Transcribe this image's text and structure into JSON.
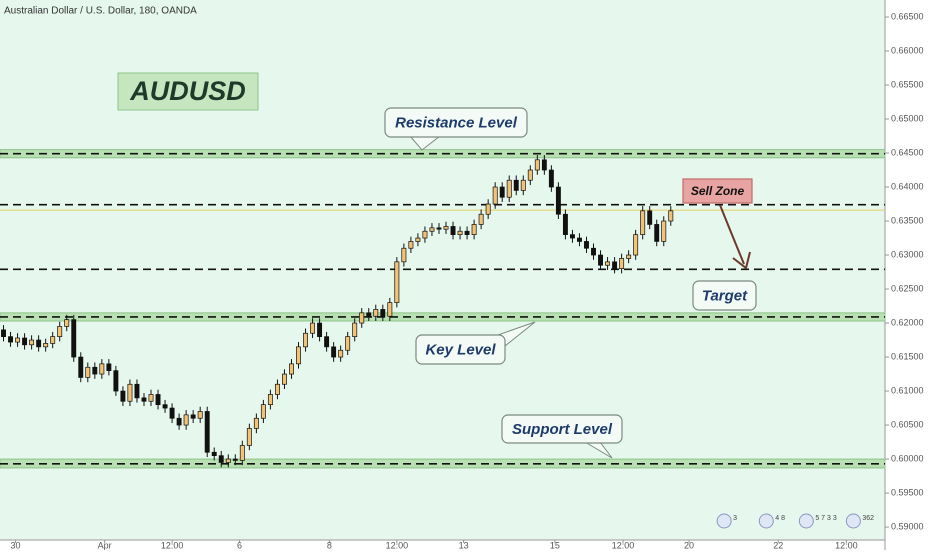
{
  "chart_data": {
    "type": "candlestick",
    "title": "Australian Dollar / U.S. Dollar, 180, OANDA",
    "symbol": "AUDUSD",
    "up_color": "#f2c277",
    "down_color": "#111111",
    "open": [
      0.619,
      0.618,
      0.6172,
      0.6178,
      0.6168,
      0.6175,
      0.6165,
      0.617,
      0.618,
      0.6195,
      0.6205,
      0.615,
      0.612,
      0.6135,
      0.6125,
      0.614,
      0.613,
      0.61,
      0.6085,
      0.611,
      0.609,
      0.6085,
      0.6095,
      0.608,
      0.6075,
      0.606,
      0.605,
      0.6065,
      0.606,
      0.607,
      0.601,
      0.6005,
      0.5995,
      0.6,
      0.5998,
      0.602,
      0.6045,
      0.606,
      0.608,
      0.6095,
      0.611,
      0.6125,
      0.614,
      0.6165,
      0.6185,
      0.62,
      0.618,
      0.6165,
      0.615,
      0.616,
      0.618,
      0.62,
      0.6215,
      0.621,
      0.622,
      0.621,
      0.623,
      0.629,
      0.631,
      0.632,
      0.6325,
      0.6335,
      0.634,
      0.6338,
      0.6342,
      0.633,
      0.6335,
      0.633,
      0.6345,
      0.636,
      0.6375,
      0.64,
      0.6385,
      0.641,
      0.6395,
      0.641,
      0.6425,
      0.644,
      0.6425,
      0.64,
      0.636,
      0.633,
      0.6325,
      0.632,
      0.631,
      0.63,
      0.6285,
      0.629,
      0.628,
      0.6295,
      0.63,
      0.633,
      0.6365,
      0.6345,
      0.632,
      0.635
    ],
    "high": [
      0.6197,
      0.6187,
      0.6185,
      0.6185,
      0.6182,
      0.6182,
      0.6177,
      0.6187,
      0.6202,
      0.6212,
      0.6212,
      0.6157,
      0.6142,
      0.6142,
      0.6147,
      0.6147,
      0.6137,
      0.6107,
      0.6117,
      0.6117,
      0.6097,
      0.6102,
      0.6102,
      0.6087,
      0.6082,
      0.6067,
      0.6072,
      0.6072,
      0.6077,
      0.6077,
      0.6017,
      0.6012,
      0.6007,
      0.6007,
      0.6027,
      0.6052,
      0.6067,
      0.6087,
      0.6102,
      0.6117,
      0.6132,
      0.6147,
      0.6172,
      0.6192,
      0.6207,
      0.6207,
      0.6187,
      0.6172,
      0.6167,
      0.6187,
      0.6207,
      0.6222,
      0.6222,
      0.6227,
      0.6227,
      0.6237,
      0.6297,
      0.6317,
      0.6327,
      0.6332,
      0.6342,
      0.6347,
      0.6347,
      0.6349,
      0.6349,
      0.6342,
      0.6342,
      0.6352,
      0.6367,
      0.6382,
      0.6407,
      0.6407,
      0.6417,
      0.6417,
      0.6417,
      0.6432,
      0.6447,
      0.6447,
      0.6432,
      0.6407,
      0.6367,
      0.6337,
      0.6332,
      0.6327,
      0.6317,
      0.6307,
      0.6297,
      0.6297,
      0.6302,
      0.6307,
      0.6337,
      0.6372,
      0.6372,
      0.6352,
      0.6357,
      0.6372
    ],
    "low": [
      0.6173,
      0.6165,
      0.6165,
      0.6161,
      0.6161,
      0.6158,
      0.6158,
      0.6163,
      0.6173,
      0.6188,
      0.6143,
      0.6113,
      0.6113,
      0.6118,
      0.6118,
      0.6123,
      0.6093,
      0.6078,
      0.6078,
      0.6083,
      0.6078,
      0.6078,
      0.6073,
      0.6068,
      0.6053,
      0.6043,
      0.6043,
      0.6053,
      0.6053,
      0.6003,
      0.5998,
      0.5988,
      0.5988,
      0.5991,
      0.5991,
      0.6013,
      0.6038,
      0.6053,
      0.6073,
      0.6088,
      0.6103,
      0.6118,
      0.6133,
      0.6158,
      0.6178,
      0.6173,
      0.6158,
      0.6143,
      0.6143,
      0.6153,
      0.6173,
      0.6193,
      0.6203,
      0.6203,
      0.6203,
      0.6203,
      0.6223,
      0.6283,
      0.6303,
      0.6313,
      0.6318,
      0.6328,
      0.6331,
      0.6331,
      0.6323,
      0.6323,
      0.6323,
      0.6323,
      0.6338,
      0.6353,
      0.6368,
      0.6378,
      0.6378,
      0.6388,
      0.6388,
      0.6403,
      0.6418,
      0.6418,
      0.6393,
      0.6353,
      0.6323,
      0.6318,
      0.6313,
      0.6303,
      0.6293,
      0.6278,
      0.6278,
      0.6273,
      0.6273,
      0.6288,
      0.6293,
      0.6323,
      0.6338,
      0.6313,
      0.6313,
      0.6343
    ],
    "close": [
      0.618,
      0.6172,
      0.6178,
      0.6168,
      0.6175,
      0.6165,
      0.617,
      0.618,
      0.6195,
      0.6205,
      0.615,
      0.612,
      0.6135,
      0.6125,
      0.614,
      0.613,
      0.61,
      0.6085,
      0.611,
      0.609,
      0.6085,
      0.6095,
      0.608,
      0.6075,
      0.606,
      0.605,
      0.6065,
      0.606,
      0.607,
      0.601,
      0.6005,
      0.5995,
      0.6,
      0.5998,
      0.602,
      0.6045,
      0.606,
      0.608,
      0.6095,
      0.611,
      0.6125,
      0.614,
      0.6165,
      0.6185,
      0.62,
      0.618,
      0.6165,
      0.615,
      0.616,
      0.618,
      0.62,
      0.6215,
      0.621,
      0.622,
      0.621,
      0.623,
      0.629,
      0.631,
      0.632,
      0.6325,
      0.6335,
      0.634,
      0.6338,
      0.6342,
      0.633,
      0.6335,
      0.633,
      0.6345,
      0.636,
      0.6375,
      0.64,
      0.6385,
      0.641,
      0.6395,
      0.641,
      0.6425,
      0.644,
      0.6425,
      0.64,
      0.636,
      0.633,
      0.6325,
      0.632,
      0.631,
      0.63,
      0.6285,
      0.629,
      0.628,
      0.6295,
      0.63,
      0.633,
      0.6365,
      0.6345,
      0.632,
      0.635,
      0.6365
    ],
    "last_price": 0.6366,
    "last_price_color": "#e8d060",
    "levels": [
      {
        "label": "Resistance Level",
        "value": 0.6449,
        "band": [
          0.6443,
          0.6455
        ]
      },
      {
        "label": "Sell Zone",
        "value": 0.6374
      },
      {
        "label": "Target",
        "value": 0.6279
      },
      {
        "label": "Key Level",
        "value": 0.6209,
        "band": [
          0.6203,
          0.6215
        ]
      },
      {
        "label": "Support Level",
        "value": 0.5993,
        "band": [
          0.5987,
          0.6
        ]
      }
    ],
    "xlim": [
      -0.5,
      125.5
    ],
    "xticks": [
      {
        "value": 1.7,
        "label": "30"
      },
      {
        "value": 14.4,
        "label": "Apr"
      },
      {
        "value": 24,
        "label": "12:00"
      },
      {
        "value": 33.6,
        "label": "6"
      },
      {
        "value": 46.4,
        "label": "8"
      },
      {
        "value": 56,
        "label": "12:00"
      },
      {
        "value": 65.5,
        "label": "13"
      },
      {
        "value": 78.5,
        "label": "15"
      },
      {
        "value": 88.2,
        "label": "12:00"
      },
      {
        "value": 97.6,
        "label": "20"
      },
      {
        "value": 110.3,
        "label": "22"
      },
      {
        "value": 120,
        "label": "12:00"
      }
    ],
    "ylim": [
      0.5881,
      0.6675
    ],
    "yticks": [
      {
        "value": 0.59,
        "label": "0.59000"
      },
      {
        "value": 0.595,
        "label": "0.59500"
      },
      {
        "value": 0.6,
        "label": "0.60000"
      },
      {
        "value": 0.605,
        "label": "0.60500"
      },
      {
        "value": 0.61,
        "label": "0.61000"
      },
      {
        "value": 0.615,
        "label": "0.61500"
      },
      {
        "value": 0.62,
        "label": "0.62000"
      },
      {
        "value": 0.625,
        "label": "0.62500"
      },
      {
        "value": 0.63,
        "label": "0.63000"
      },
      {
        "value": 0.635,
        "label": "0.63500"
      },
      {
        "value": 0.64,
        "label": "0.64000"
      },
      {
        "value": 0.645,
        "label": "0.64500"
      },
      {
        "value": 0.65,
        "label": "0.65000"
      },
      {
        "value": 0.655,
        "label": "0.65500"
      },
      {
        "value": 0.66,
        "label": "0.66000"
      },
      {
        "value": 0.665,
        "label": "0.66500"
      }
    ],
    "events": [
      {
        "x": 102.6,
        "label": "3"
      },
      {
        "x": 108.6,
        "label": "4 8"
      },
      {
        "x": 114.3,
        "label": "5 7 3 3"
      },
      {
        "x": 121,
        "label": "362"
      }
    ]
  }
}
